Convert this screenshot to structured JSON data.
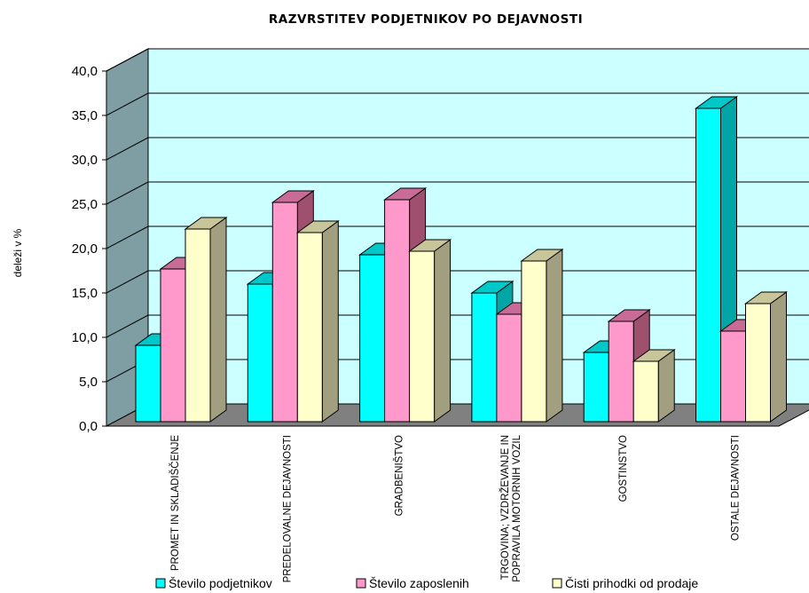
{
  "chart_data": {
    "type": "bar",
    "title": "RAZVRSTITEV PODJETNIKOV PO DEJAVNOSTI",
    "xlabel": "",
    "ylabel": "deleži v %",
    "ylim": [
      0,
      40
    ],
    "yticks": [
      "0,0",
      "5,0",
      "10,0",
      "15,0",
      "20,0",
      "25,0",
      "30,0",
      "35,0",
      "40,0"
    ],
    "grid": true,
    "legend_position": "bottom",
    "categories": [
      [
        "PROMET IN SKLADIŠČENJE"
      ],
      [
        "PREDELOVALNE DEJAVNOSTI"
      ],
      [
        "GRADBENIŠTVO"
      ],
      [
        "TRGOVINA; VZDRŽEVANJE IN",
        "POPRAVILA MOTORNIH VOZIL"
      ],
      [
        "GOSTINSTVO"
      ],
      [
        "OSTALE DEJAVNOSTI"
      ]
    ],
    "series": [
      {
        "name": "Število podjetnikov",
        "values": [
          8.6,
          15.5,
          18.8,
          14.5,
          7.8,
          35.3
        ],
        "color": "#00ffff",
        "side": "#00a6a6",
        "top": "#00c8c8"
      },
      {
        "name": "Število zaposlenih",
        "values": [
          17.2,
          24.7,
          25.0,
          12.1,
          11.3,
          10.2
        ],
        "color": "#ff99cc",
        "side": "#a0506f",
        "top": "#c86b96"
      },
      {
        "name": "Čisti prihodki od prodaje",
        "values": [
          21.7,
          21.3,
          19.2,
          18.1,
          6.8,
          13.3
        ],
        "color": "#ffffcc",
        "side": "#a19f80",
        "top": "#c8c59a"
      }
    ]
  }
}
